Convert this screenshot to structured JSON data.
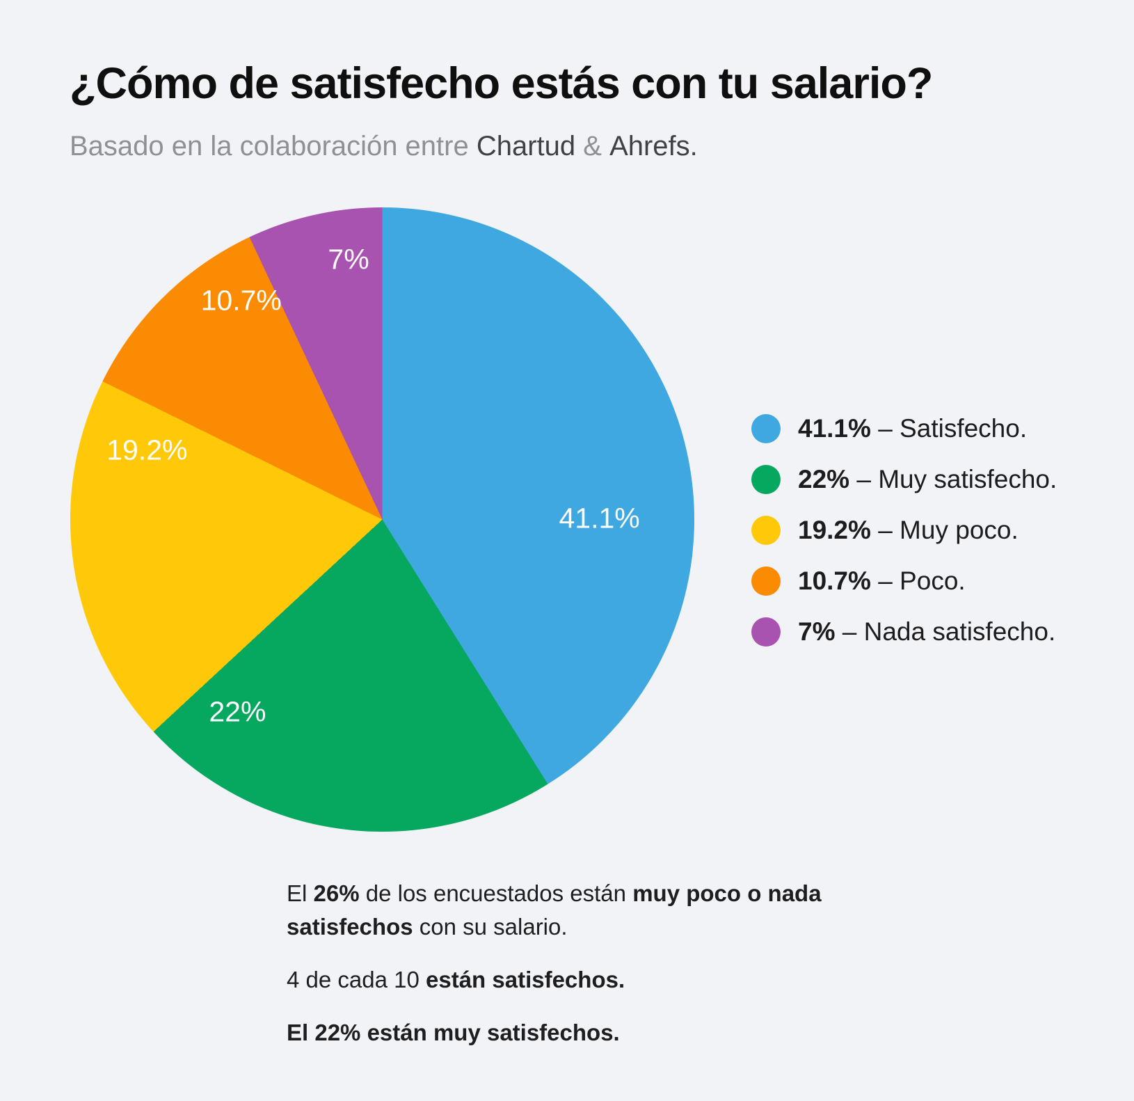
{
  "page": {
    "background": "#F2F3F6"
  },
  "header": {
    "title": "¿Cómo de satisfecho estás con tu salario?",
    "subtitle": {
      "prefix": "Basado en la colaboración entre ",
      "brand1": "Chartud",
      "connector": " & ",
      "brand2": "Ahrefs",
      "suffix": "."
    }
  },
  "chart_data": {
    "type": "pie",
    "title": "¿Cómo de satisfecho estás con tu salario?",
    "subtitle": "Basado en la colaboración entre Chartud & Ahrefs.",
    "start_angle_deg": 0,
    "direction": "clockwise",
    "legend_position": "right",
    "categories": [
      "Satisfecho",
      "Muy satisfecho",
      "Muy poco",
      "Poco",
      "Nada satisfecho"
    ],
    "values": [
      41.1,
      22,
      19.2,
      10.7,
      7
    ],
    "slices": [
      {
        "label": "Satisfecho",
        "value": 41.1,
        "display": "41.1%",
        "color": "#3FA8E0",
        "label_x_pct": 84.8,
        "label_y_pct": 49.8
      },
      {
        "label": "Muy satisfecho",
        "value": 22,
        "display": "22%",
        "color": "#06A860",
        "label_x_pct": 26.8,
        "label_y_pct": 80.8
      },
      {
        "label": "Muy poco",
        "value": 19.2,
        "display": "19.2%",
        "color": "#FFC90A",
        "label_x_pct": 12.3,
        "label_y_pct": 38.9
      },
      {
        "label": "Poco",
        "value": 10.7,
        "display": "10.7%",
        "color": "#FA8B02",
        "label_x_pct": 27.4,
        "label_y_pct": 14.9
      },
      {
        "label": "Nada satisfecho",
        "value": 7,
        "display": "7%",
        "color": "#A853AF",
        "label_x_pct": 44.6,
        "label_y_pct": 8.4
      }
    ]
  },
  "legend": {
    "items": [
      {
        "pct": "41.1%",
        "rest": " – Satisfecho."
      },
      {
        "pct": "22%",
        "rest": " – Muy satisfecho."
      },
      {
        "pct": "19.2%",
        "rest": " – Muy poco."
      },
      {
        "pct": "10.7%",
        "rest": " – Poco."
      },
      {
        "pct": "7%",
        "rest": " – Nada satisfecho."
      }
    ]
  },
  "notes": [
    {
      "segments": [
        {
          "text": "El ",
          "bold": false
        },
        {
          "text": "26%",
          "bold": true
        },
        {
          "text": " de los encuestados están ",
          "bold": false
        },
        {
          "text": "muy poco o nada\nsatisfechos",
          "bold": true
        },
        {
          "text": " con su salario.",
          "bold": false
        }
      ]
    },
    {
      "segments": [
        {
          "text": "4 de cada 10 ",
          "bold": false
        },
        {
          "text": "están satisfechos.",
          "bold": true
        }
      ]
    },
    {
      "segments": [
        {
          "text": "El 22% están muy satisfechos.",
          "bold": true
        }
      ]
    }
  ]
}
